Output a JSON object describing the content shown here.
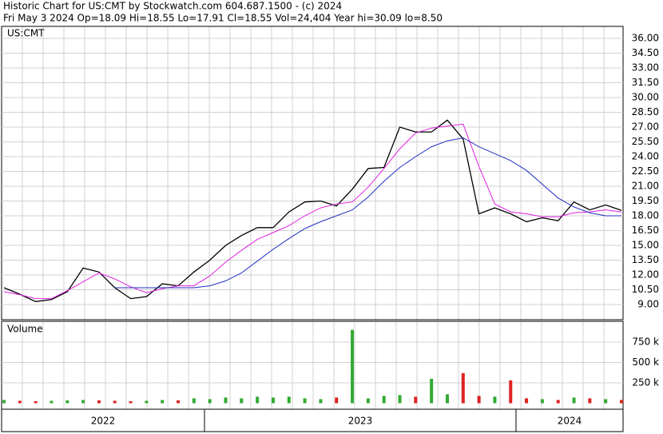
{
  "chart_data": {
    "type": "stock",
    "title": "Historic Chart for US:CMT by Stockwatch.com 604.687.1500 - (c) 2024",
    "subtitle": "Fri May  3 2024  Op=18.09  Hi=18.55  Lo=17.91  Cl=18.55  Vol=24,404  Year hi=30.09  lo=8.50",
    "symbol": "US:CMT",
    "x_labels": [
      "2022",
      "2023",
      "2024"
    ],
    "grid": true,
    "series": [
      {
        "color": "#000000",
        "values": [
          10.7,
          10.05,
          9.3,
          9.5,
          10.3,
          12.7,
          12.3,
          10.7,
          9.6,
          9.8,
          11.1,
          10.9,
          12.3,
          13.5,
          15.0,
          16.0,
          16.8,
          16.8,
          18.4,
          19.4,
          19.5,
          19.0,
          20.7,
          22.8,
          22.9,
          27.0,
          26.5,
          26.5,
          27.7,
          25.8,
          18.2,
          18.8,
          18.2,
          17.4,
          17.8,
          17.5,
          19.4,
          18.6,
          19.1,
          18.55
        ]
      },
      {
        "color": "#e020e0",
        "values": [
          10.3,
          10.0,
          9.6,
          9.6,
          10.4,
          11.3,
          12.2,
          11.6,
          10.8,
          10.2,
          10.6,
          10.9,
          10.9,
          11.9,
          13.3,
          14.5,
          15.6,
          16.3,
          17.0,
          18.0,
          18.8,
          19.2,
          19.4,
          20.9,
          22.8,
          24.8,
          26.4,
          26.9,
          27.1,
          27.3,
          23.0,
          19.2,
          18.4,
          18.2,
          17.9,
          17.9,
          18.3,
          18.4,
          18.6,
          18.4
        ]
      },
      {
        "color": "#2030c0",
        "values": [
          null,
          null,
          null,
          null,
          null,
          null,
          null,
          10.7,
          10.7,
          10.7,
          10.7,
          10.7,
          10.7,
          10.9,
          11.4,
          12.2,
          13.4,
          14.6,
          15.7,
          16.7,
          17.4,
          18.0,
          18.6,
          19.9,
          21.5,
          22.9,
          24.0,
          25.0,
          25.6,
          25.9,
          25.0,
          24.3,
          23.6,
          22.6,
          21.2,
          19.8,
          18.9,
          18.3,
          18.0,
          18.0
        ]
      }
    ],
    "ylim": [
      7.46,
      37.05
    ],
    "yticks": [
      {
        "value": 9,
        "label": "9.00"
      },
      {
        "value": 10.5,
        "label": "10.50"
      },
      {
        "value": 12,
        "label": "12.00"
      },
      {
        "value": 13.5,
        "label": "13.50"
      },
      {
        "value": 15,
        "label": "15.00"
      },
      {
        "value": 16.5,
        "label": "16.50"
      },
      {
        "value": 18,
        "label": "18.00"
      },
      {
        "value": 19.5,
        "label": "19.50"
      },
      {
        "value": 21,
        "label": "21.00"
      },
      {
        "value": 22.5,
        "label": "22.50"
      },
      {
        "value": 24,
        "label": "24.00"
      },
      {
        "value": 25.5,
        "label": "25.50"
      },
      {
        "value": 27,
        "label": "27.00"
      },
      {
        "value": 28.5,
        "label": "28.50"
      },
      {
        "value": 30,
        "label": "30.00"
      },
      {
        "value": 31.5,
        "label": "31.50"
      },
      {
        "value": 33,
        "label": "33.00"
      },
      {
        "value": 34.5,
        "label": "34.50"
      },
      {
        "value": 36,
        "label": "36.00"
      }
    ],
    "volume": {
      "label": "Volume",
      "up_color": "#33aa33",
      "down_color": "#dd2222",
      "values": [
        40000,
        30000,
        25000,
        30000,
        35000,
        40000,
        35000,
        30000,
        25000,
        30000,
        40000,
        35000,
        60000,
        50000,
        70000,
        60000,
        80000,
        70000,
        80000,
        60000,
        50000,
        70000,
        900000,
        60000,
        90000,
        100000,
        80000,
        300000,
        110000,
        370000,
        90000,
        80000,
        280000,
        60000,
        50000,
        40000,
        70000,
        60000,
        50000,
        40000
      ],
      "ylim": [
        -54000,
        995000
      ],
      "yticks": [
        {
          "value": 250000,
          "label": "250 k"
        },
        {
          "value": 500000,
          "label": "500 k"
        },
        {
          "value": 750000,
          "label": "750 k"
        }
      ]
    }
  }
}
